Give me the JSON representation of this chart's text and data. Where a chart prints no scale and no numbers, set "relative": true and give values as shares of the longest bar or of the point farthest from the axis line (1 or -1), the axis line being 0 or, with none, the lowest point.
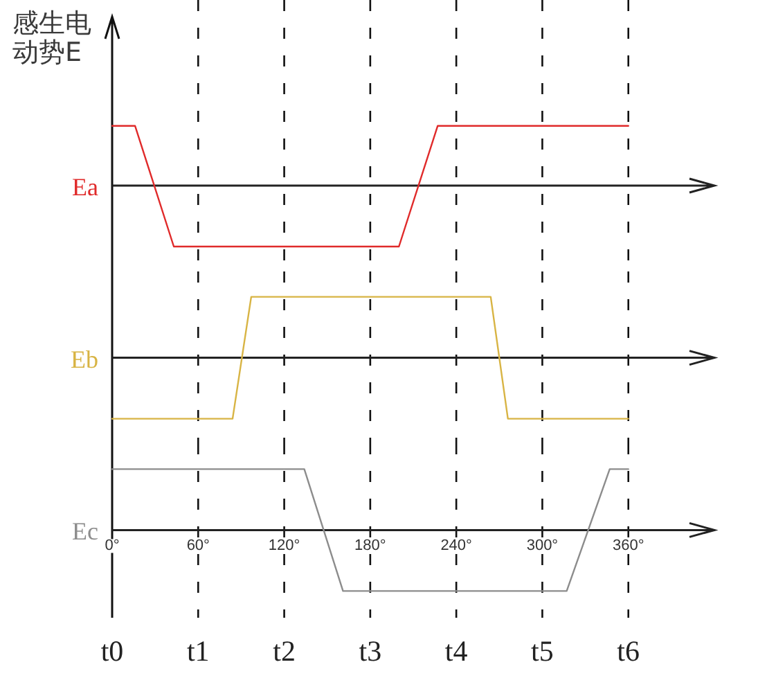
{
  "chart_data": [
    {
      "type": "line",
      "relative": true,
      "ylabel": "感生电动势E",
      "x": [
        0,
        16,
        43,
        200,
        227,
        360
      ],
      "series": [
        {
          "name": "Ea",
          "color": "#e02a2a",
          "values": [
            0.98,
            0.98,
            -1,
            -1,
            0.98,
            0.98
          ]
        }
      ],
      "xlim": [
        0,
        420
      ],
      "ref_lines": [
        {
          "axis": "x",
          "value": 60,
          "line_style": "dashed"
        },
        {
          "axis": "x",
          "value": 120,
          "line_style": "dashed"
        },
        {
          "axis": "x",
          "value": 180,
          "line_style": "dashed"
        },
        {
          "axis": "x",
          "value": 240,
          "line_style": "dashed"
        },
        {
          "axis": "x",
          "value": 300,
          "line_style": "dashed"
        },
        {
          "axis": "x",
          "value": 360,
          "line_style": "dashed"
        }
      ]
    },
    {
      "type": "line",
      "relative": true,
      "x": [
        0,
        84,
        97,
        264,
        276,
        360
      ],
      "series": [
        {
          "name": "Eb",
          "color": "#d8b444",
          "values": [
            -1,
            -1,
            1,
            1,
            -1,
            -1
          ]
        }
      ],
      "xlim": [
        0,
        420
      ],
      "ref_lines": [
        {
          "axis": "x",
          "value": 60,
          "line_style": "dashed"
        },
        {
          "axis": "x",
          "value": 120,
          "line_style": "dashed"
        },
        {
          "axis": "x",
          "value": 180,
          "line_style": "dashed"
        },
        {
          "axis": "x",
          "value": 240,
          "line_style": "dashed"
        },
        {
          "axis": "x",
          "value": 300,
          "line_style": "dashed"
        },
        {
          "axis": "x",
          "value": 360,
          "line_style": "dashed"
        }
      ]
    },
    {
      "type": "line",
      "relative": true,
      "x": [
        0,
        134,
        161,
        317,
        347,
        360
      ],
      "series": [
        {
          "name": "Ec",
          "color": "#8c8c8c",
          "values": [
            1,
            1,
            -1,
            -1,
            1,
            1
          ]
        }
      ],
      "xlim": [
        0,
        420
      ],
      "xticks": [
        {
          "value": 0,
          "label": "0°"
        },
        {
          "value": 60,
          "label": "60°"
        },
        {
          "value": 120,
          "label": "120°"
        },
        {
          "value": 180,
          "label": "180°"
        },
        {
          "value": 240,
          "label": "240°"
        },
        {
          "value": 300,
          "label": "300°"
        },
        {
          "value": 360,
          "label": "360°"
        }
      ],
      "ref_lines": [
        {
          "axis": "x",
          "value": 0,
          "label": "t0",
          "line_style": "solid"
        },
        {
          "axis": "x",
          "value": 60,
          "label": "t1",
          "line_style": "dashed"
        },
        {
          "axis": "x",
          "value": 120,
          "label": "t2",
          "line_style": "dashed"
        },
        {
          "axis": "x",
          "value": 180,
          "label": "t3",
          "line_style": "dashed"
        },
        {
          "axis": "x",
          "value": 240,
          "label": "t4",
          "line_style": "dashed"
        },
        {
          "axis": "x",
          "value": 300,
          "label": "t5",
          "line_style": "dashed"
        },
        {
          "axis": "x",
          "value": 360,
          "label": "t6",
          "line_style": "dashed"
        }
      ]
    }
  ]
}
